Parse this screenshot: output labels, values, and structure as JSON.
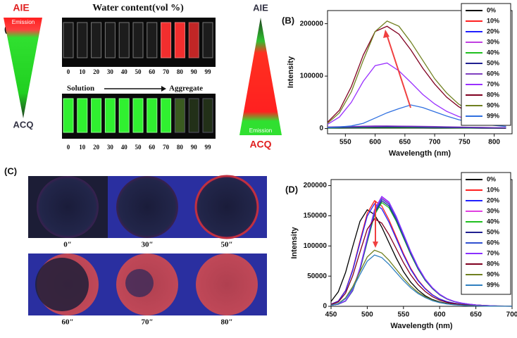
{
  "panel_a": {
    "label": "(A)",
    "left_top": "AIE",
    "left_emission": "Emission",
    "left_bottom": "ACQ",
    "title": "Water content(vol %)",
    "top_numbers": [
      "0",
      "10",
      "20",
      "30",
      "40",
      "50",
      "60",
      "70",
      "80",
      "90",
      "99"
    ],
    "solution": "Solution",
    "aggregate": "Aggregate",
    "bottom_numbers": [
      "0",
      "10",
      "20",
      "30",
      "40",
      "50",
      "60",
      "70",
      "80",
      "90",
      "99"
    ],
    "right_top": "AIE",
    "right_emission": "Emission",
    "right_bottom": "ACQ"
  },
  "panel_c": {
    "label": "(C)",
    "times": [
      "0″",
      "30″",
      "50″",
      "60″",
      "70″",
      "80″"
    ]
  },
  "chart_data": [
    {
      "type": "line",
      "label": "(B)",
      "x_label": "Wavelength (nm)",
      "y_label": "Intensity",
      "legend": "upper right",
      "x": [
        520,
        540,
        560,
        580,
        600,
        620,
        640,
        660,
        680,
        700,
        720,
        740,
        760,
        780,
        800,
        820
      ],
      "xlim": [
        520,
        830
      ],
      "xticks": [
        550,
        600,
        650,
        700,
        750,
        800
      ],
      "ylim": [
        -10000,
        225000
      ],
      "yticks": [
        0,
        100000,
        200000
      ],
      "series": [
        {
          "name": "0%",
          "color": "#000000",
          "values": [
            800,
            800,
            900,
            900,
            1000,
            1000,
            1000,
            900,
            900,
            800,
            800,
            700,
            700,
            600,
            600,
            500
          ]
        },
        {
          "name": "10%",
          "color": "#ff2020",
          "values": [
            1500,
            1600,
            1800,
            2000,
            2200,
            2300,
            2200,
            2100,
            1900,
            1700,
            1500,
            1300,
            1100,
            1000,
            900,
            800
          ]
        },
        {
          "name": "20%",
          "color": "#2020ff",
          "values": [
            2000,
            2200,
            2500,
            2800,
            3000,
            3200,
            3100,
            2900,
            2600,
            2300,
            2000,
            1700,
            1500,
            1300,
            1100,
            1000
          ]
        },
        {
          "name": "30%",
          "color": "#c040e0",
          "values": [
            2500,
            2800,
            3200,
            3600,
            4000,
            4200,
            4100,
            3800,
            3400,
            3000,
            2600,
            2200,
            1900,
            1600,
            1400,
            1200
          ]
        },
        {
          "name": "40%",
          "color": "#20c020",
          "values": [
            1200,
            1300,
            1500,
            1700,
            1900,
            2000,
            1900,
            1800,
            1600,
            1400,
            1300,
            1100,
            1000,
            900,
            800,
            700
          ]
        },
        {
          "name": "50%",
          "color": "#202090",
          "values": [
            1800,
            2000,
            2300,
            2600,
            2800,
            3000,
            2900,
            2700,
            2400,
            2100,
            1800,
            1600,
            1400,
            1200,
            1000,
            900
          ]
        },
        {
          "name": "60%",
          "color": "#8040c0",
          "values": [
            3000,
            3500,
            4000,
            4500,
            5000,
            5000,
            4800,
            4500,
            4200,
            3800,
            3400,
            3000,
            2600,
            2300,
            2000,
            1800
          ]
        },
        {
          "name": "70%",
          "color": "#9a30ff",
          "values": [
            8000,
            22000,
            50000,
            90000,
            120000,
            125000,
            110000,
            88000,
            65000,
            47000,
            33000,
            23000,
            16000,
            11000,
            8000,
            6000
          ]
        },
        {
          "name": "80%",
          "color": "#800020",
          "values": [
            12000,
            35000,
            80000,
            140000,
            185000,
            195000,
            180000,
            150000,
            115000,
            85000,
            60000,
            42000,
            28000,
            19000,
            13000,
            9000
          ]
        },
        {
          "name": "90%",
          "color": "#708020",
          "values": [
            10000,
            30000,
            70000,
            130000,
            185000,
            205000,
            195000,
            165000,
            130000,
            95000,
            68000,
            47000,
            32000,
            22000,
            15000,
            11000
          ]
        },
        {
          "name": "99%",
          "color": "#3070e0",
          "values": [
            2000,
            3000,
            5000,
            10000,
            20000,
            30000,
            38000,
            45000,
            40000,
            32000,
            24000,
            17000,
            12000,
            8000,
            6000,
            4000
          ]
        }
      ]
    },
    {
      "type": "line",
      "label": "(D)",
      "x_label": "Wavelength (nm)",
      "y_label": "Intensity",
      "legend": "upper right",
      "x": [
        450,
        460,
        470,
        480,
        490,
        500,
        510,
        520,
        530,
        540,
        550,
        560,
        570,
        580,
        590,
        600,
        610,
        620,
        630,
        640,
        650,
        660,
        670,
        680,
        690,
        700
      ],
      "xlim": [
        450,
        700
      ],
      "xticks": [
        450,
        500,
        550,
        600,
        650,
        700
      ],
      "ylim": [
        0,
        210000
      ],
      "yticks": [
        0,
        50000,
        100000,
        150000,
        200000
      ],
      "series": [
        {
          "name": "0%",
          "color": "#000000",
          "values": [
            8000,
            24000,
            56000,
            99200,
            140800,
            160000,
            152000,
            131200,
            105600,
            80000,
            57600,
            40000,
            27200,
            17600,
            11200,
            7200,
            4800,
            3200,
            2080,
            1280,
            800,
            480,
            320,
            160,
            160,
            0
          ]
        },
        {
          "name": "10%",
          "color": "#ff2020",
          "values": [
            3500,
            8750,
            26250,
            61250,
            108500,
            154000,
            175000,
            166250,
            143500,
            115500,
            87500,
            63000,
            43750,
            29750,
            19250,
            12250,
            7875,
            5250,
            3500,
            2275,
            1400,
            875,
            525,
            350,
            175,
            175
          ]
        },
        {
          "name": "20%",
          "color": "#2020ff",
          "values": [
            3400,
            8500,
            25500,
            59500,
            105400,
            149600,
            170000,
            161500,
            139400,
            112200,
            85000,
            61200,
            42500,
            28900,
            18700,
            11900,
            7650,
            5100,
            3400,
            2210,
            1360,
            850,
            510,
            340,
            170,
            170
          ]
        },
        {
          "name": "30%",
          "color": "#e040e0",
          "values": [
            1800,
            3600,
            9000,
            27000,
            63000,
            111600,
            158400,
            180000,
            171000,
            147600,
            118800,
            90000,
            64800,
            45000,
            30600,
            19800,
            12600,
            8100,
            5400,
            3600,
            2340,
            1440,
            900,
            540,
            360,
            180
          ]
        },
        {
          "name": "40%",
          "color": "#20c020",
          "values": [
            1720,
            3440,
            8600,
            25800,
            60200,
            106640,
            151360,
            172000,
            163400,
            141040,
            113520,
            86000,
            61920,
            43000,
            29240,
            18920,
            12040,
            7740,
            5160,
            3440,
            2236,
            1376,
            860,
            516,
            344,
            172
          ]
        },
        {
          "name": "50%",
          "color": "#202090",
          "values": [
            1750,
            3500,
            8750,
            26250,
            61250,
            108500,
            154000,
            175000,
            166250,
            143500,
            115500,
            87500,
            63000,
            43750,
            29750,
            19250,
            12250,
            7875,
            5250,
            3500,
            2275,
            1400,
            875,
            525,
            350,
            175
          ]
        },
        {
          "name": "60%",
          "color": "#3050d0",
          "values": [
            1780,
            3560,
            8900,
            26700,
            62300,
            110360,
            156640,
            178000,
            169100,
            145960,
            117480,
            89000,
            64080,
            44500,
            30260,
            19580,
            12460,
            8010,
            5340,
            3560,
            2314,
            1424,
            890,
            534,
            356,
            178
          ]
        },
        {
          "name": "70%",
          "color": "#8a30ff",
          "values": [
            1820,
            3640,
            9100,
            27300,
            63700,
            112840,
            160160,
            182000,
            172900,
            149240,
            120120,
            91000,
            65520,
            45500,
            30940,
            20020,
            12740,
            8190,
            5460,
            3640,
            2366,
            1456,
            910,
            546,
            364,
            182
          ]
        },
        {
          "name": "80%",
          "color": "#800020",
          "values": [
            2900,
            7250,
            21750,
            50750,
            89900,
            127600,
            145000,
            137750,
            118900,
            95700,
            72500,
            52200,
            36250,
            24650,
            15950,
            10150,
            6525,
            4350,
            2900,
            1885,
            1160,
            725,
            435,
            290,
            145,
            145
          ]
        },
        {
          "name": "90%",
          "color": "#708020",
          "values": [
            1860,
            4650,
            13950,
            32550,
            57660,
            81840,
            93000,
            88350,
            76260,
            61380,
            46500,
            33480,
            23250,
            15810,
            10230,
            6510,
            4185,
            2790,
            1860,
            1209,
            744,
            465,
            279,
            186,
            93,
            93
          ]
        },
        {
          "name": "99%",
          "color": "#3080c0",
          "values": [
            1700,
            4250,
            12750,
            29750,
            52700,
            74800,
            85000,
            80750,
            69700,
            56100,
            42500,
            30600,
            21250,
            14450,
            9350,
            5950,
            3825,
            2550,
            1700,
            1105,
            680,
            425,
            255,
            170,
            85,
            85
          ]
        }
      ]
    }
  ]
}
